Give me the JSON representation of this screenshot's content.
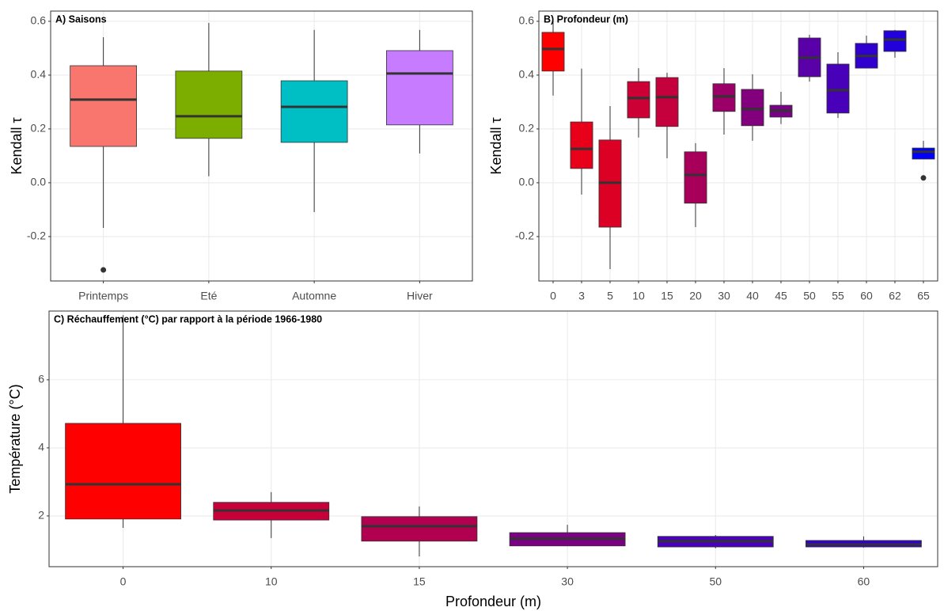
{
  "chart_data": [
    {
      "type": "box",
      "title": "A) Saisons",
      "ylabel": "Kendall τ",
      "categories": [
        "Printemps",
        "Eté",
        "Automne",
        "Hiver"
      ],
      "colors": [
        "#F8766D",
        "#7CAE00",
        "#00BFC4",
        "#C77CFF"
      ],
      "boxes": [
        {
          "whisker_low": -0.168,
          "q1": 0.135,
          "median": 0.309,
          "q3": 0.435,
          "whisker_high": 0.541,
          "outliers": [
            -0.324
          ]
        },
        {
          "whisker_low": 0.024,
          "q1": 0.165,
          "median": 0.247,
          "q3": 0.415,
          "whisker_high": 0.594
        },
        {
          "whisker_low": -0.109,
          "q1": 0.15,
          "median": 0.282,
          "q3": 0.379,
          "whisker_high": 0.568
        },
        {
          "whisker_low": 0.109,
          "q1": 0.215,
          "median": 0.406,
          "q3": 0.491,
          "whisker_high": 0.568
        }
      ],
      "ylim": [
        -0.365,
        0.638
      ],
      "yticks": [
        -0.2,
        {
          "value": 0,
          "label": "0.0"
        },
        0.2,
        0.4,
        0.6
      ],
      "grid": true
    },
    {
      "type": "box",
      "title": "B) Profondeur (m)",
      "ylabel": "Kendall τ",
      "categories": [
        "0",
        "3",
        "5",
        "10",
        "15",
        "20",
        "30",
        "40",
        "45",
        "50",
        "55",
        "60",
        "62",
        "65"
      ],
      "colors": [
        "#FF0000",
        "#E8001A",
        "#DC0024",
        "#CC0035",
        "#C4003D",
        "#A8005A",
        "#9A0068",
        "#82007E",
        "#7A0087",
        "#5A00A8",
        "#4800B8",
        "#3000CF",
        "#2200DC",
        "#0000FF"
      ],
      "boxes": [
        {
          "whisker_low": 0.324,
          "q1": 0.415,
          "median": 0.497,
          "q3": 0.559,
          "whisker_high": 0.606
        },
        {
          "whisker_low": -0.044,
          "q1": 0.053,
          "median": 0.126,
          "q3": 0.226,
          "whisker_high": 0.424
        },
        {
          "whisker_low": -0.321,
          "q1": -0.165,
          "median": 0.0,
          "q3": 0.159,
          "whisker_high": 0.285
        },
        {
          "whisker_low": 0.168,
          "q1": 0.241,
          "median": 0.315,
          "q3": 0.376,
          "whisker_high": 0.426
        },
        {
          "whisker_low": 0.091,
          "q1": 0.209,
          "median": 0.318,
          "q3": 0.391,
          "whisker_high": 0.409
        },
        {
          "whisker_low": -0.165,
          "q1": -0.076,
          "median": 0.029,
          "q3": 0.115,
          "whisker_high": 0.147
        },
        {
          "whisker_low": 0.179,
          "q1": 0.265,
          "median": 0.321,
          "q3": 0.368,
          "whisker_high": 0.426
        },
        {
          "whisker_low": 0.156,
          "q1": 0.212,
          "median": 0.274,
          "q3": 0.347,
          "whisker_high": 0.403
        },
        {
          "whisker_low": 0.218,
          "q1": 0.244,
          "median": 0.268,
          "q3": 0.288,
          "whisker_high": 0.338
        },
        {
          "whisker_low": 0.376,
          "q1": 0.394,
          "median": 0.465,
          "q3": 0.538,
          "whisker_high": 0.55
        },
        {
          "whisker_low": 0.241,
          "q1": 0.259,
          "median": 0.344,
          "q3": 0.441,
          "whisker_high": 0.485
        },
        {
          "whisker_low": 0.426,
          "q1": 0.426,
          "median": 0.471,
          "q3": 0.518,
          "whisker_high": 0.547
        },
        {
          "whisker_low": 0.465,
          "q1": 0.488,
          "median": 0.532,
          "q3": 0.565,
          "whisker_high": 0.568
        },
        {
          "whisker_low": 0.088,
          "q1": 0.088,
          "median": 0.115,
          "q3": 0.129,
          "whisker_high": 0.156,
          "outliers": [
            0.018
          ]
        }
      ],
      "ylim": [
        -0.365,
        0.638
      ],
      "yticks": [
        -0.2,
        {
          "value": 0,
          "label": "0.0"
        },
        0.2,
        0.4,
        0.6
      ],
      "grid": true
    },
    {
      "type": "box",
      "title": "C) Réchauffement (°C) par rapport à la période 1966-1980",
      "ylabel": "Température (°C)",
      "xlabel": "Profondeur (m)",
      "categories": [
        "0",
        "10",
        "15",
        "30",
        "50",
        "60"
      ],
      "colors": [
        "#FF0000",
        "#C8003A",
        "#B0004F",
        "#7B0083",
        "#4A00BE",
        "#3300D0"
      ],
      "boxes": [
        {
          "whisker_low": 1.65,
          "q1": 1.91,
          "median": 2.93,
          "q3": 4.72,
          "whisker_high": 7.9
        },
        {
          "whisker_low": 1.35,
          "q1": 1.88,
          "median": 2.16,
          "q3": 2.4,
          "whisker_high": 2.7
        },
        {
          "whisker_low": 0.81,
          "q1": 1.26,
          "median": 1.7,
          "q3": 1.98,
          "whisker_high": 2.28
        },
        {
          "whisker_low": 1.12,
          "q1": 1.12,
          "median": 1.33,
          "q3": 1.51,
          "whisker_high": 1.74
        },
        {
          "whisker_low": 1.05,
          "q1": 1.09,
          "median": 1.26,
          "q3": 1.4,
          "whisker_high": 1.44
        },
        {
          "whisker_low": 1.07,
          "q1": 1.09,
          "median": 1.16,
          "q3": 1.28,
          "whisker_high": 1.4
        }
      ],
      "ylim": [
        0.51,
        8.02
      ],
      "yticks": [
        2,
        4,
        6
      ],
      "grid": true
    }
  ]
}
